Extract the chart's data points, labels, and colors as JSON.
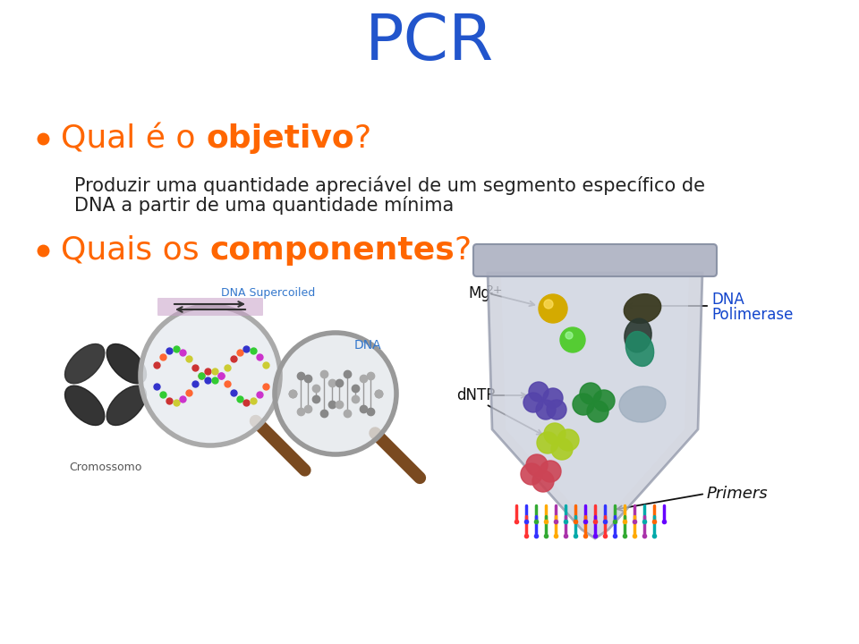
{
  "title": "PCR",
  "title_color": "#2255CC",
  "title_fontsize": 52,
  "background_color": "#ffffff",
  "bullet_color": "#FF6600",
  "sub_text_line1": "Produzir uma quantidade apreciável de um segmento específico de",
  "sub_text_line2": "DNA a partir de uma quantidade mínima",
  "sub_fontsize": 15,
  "bullet_fontsize": 26,
  "label_mg": "Mg",
  "label_mg_super": "2+",
  "label_dntp": "dNTP",
  "label_dna_pol_line1": "DNA",
  "label_dna_pol_line2": "Polimerase",
  "label_primers": "Primers",
  "label_color_black": "#111111",
  "label_color_blue": "#1144CC",
  "label_fontsize": 12,
  "dna_label": "DNA",
  "supercoiled_label": "DNA Supercoiled",
  "cromossomo_label": "Cromossomo"
}
